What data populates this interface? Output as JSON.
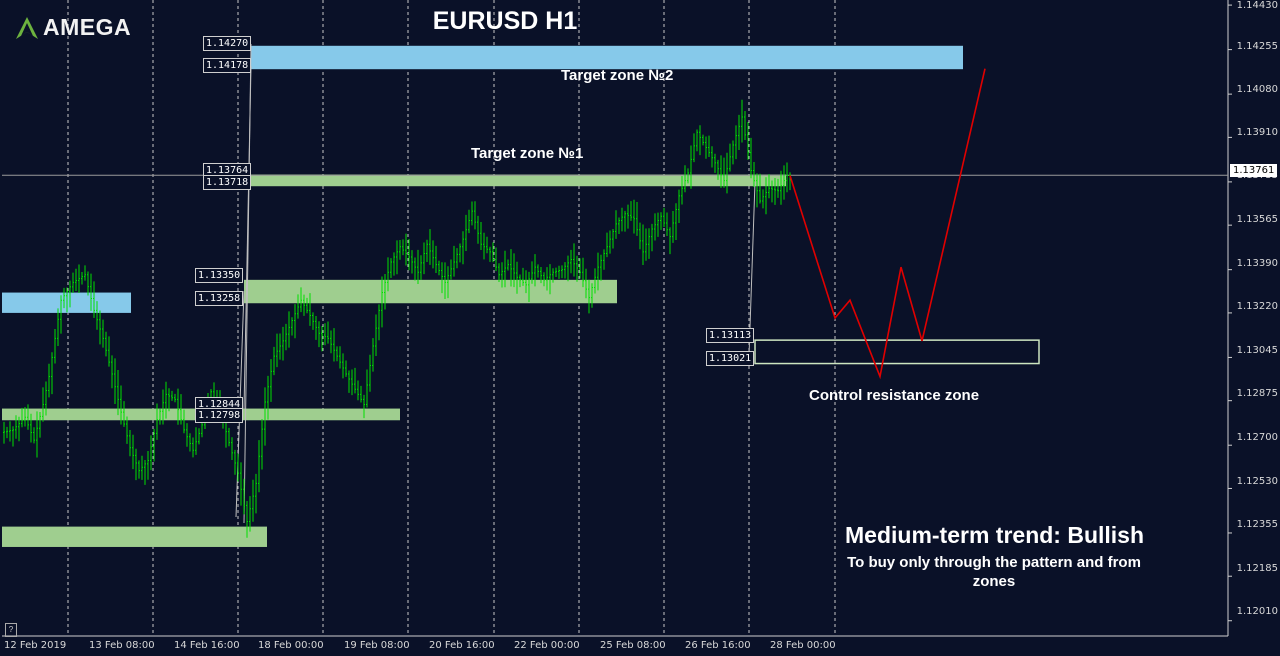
{
  "logo": {
    "text": "AMEGA",
    "icon": "amega-logo-icon"
  },
  "title": "EURUSD H1",
  "labels": {
    "target2": "Target zone №2",
    "target1": "Target zone №1",
    "control": "Control resistance zone",
    "trend": "Medium-term trend: Bullish",
    "advice": "To buy only through the pattern  and from zones"
  },
  "price_labels": [
    "1.14270",
    "1.14178",
    "1.13764",
    "1.13718",
    "1.13350",
    "1.13258",
    "1.12844",
    "1.12798",
    "1.13113",
    "1.13021"
  ],
  "current_price": "1.13761",
  "colors": {
    "background": "#0a1128",
    "candles": "#00e000",
    "forecast": "#e00000",
    "green_zone": "#9fce8f",
    "blue_zone": "#86c9ea"
  },
  "chart_data": {
    "type": "candlestick",
    "symbol": "EURUSD",
    "timeframe": "H1",
    "y_ticks": [
      "1.14430",
      "1.14255",
      "1.14080",
      "1.13910",
      "1.13735",
      "1.13565",
      "1.13390",
      "1.13220",
      "1.13045",
      "1.12875",
      "1.12700",
      "1.12530",
      "1.12355",
      "1.12185",
      "1.12010"
    ],
    "x_ticks": [
      "12 Feb 2019",
      "13 Feb 08:00",
      "14 Feb 16:00",
      "18 Feb 00:00",
      "19 Feb 08:00",
      "20 Feb 16:00",
      "22 Feb 00:00",
      "25 Feb 08:00",
      "26 Feb 16:00",
      "28 Feb 00:00"
    ],
    "ylim": [
      1.1195,
      1.1445
    ],
    "last_price": 1.13761,
    "zones": [
      {
        "name": "Target zone №2",
        "low": 1.14178,
        "high": 1.1427,
        "color": "blue"
      },
      {
        "name": "Target zone №1",
        "low": 1.13718,
        "high": 1.13764,
        "color": "green"
      },
      {
        "low": 1.13258,
        "high": 1.1335,
        "color": "green"
      },
      {
        "low": 1.12798,
        "high": 1.12844,
        "color": "green"
      },
      {
        "low": 1.1322,
        "high": 1.133,
        "color": "blue"
      },
      {
        "low": 1.123,
        "high": 1.1238,
        "color": "green"
      },
      {
        "name": "Control resistance zone",
        "low": 1.13021,
        "high": 1.13113,
        "color": "outline"
      }
    ],
    "price_path": [
      [
        0,
        1.1275
      ],
      [
        4,
        1.1276
      ],
      [
        8,
        1.1281
      ],
      [
        11,
        1.1272
      ],
      [
        14,
        1.1286
      ],
      [
        16,
        1.1297
      ],
      [
        20,
        1.1327
      ],
      [
        24,
        1.1334
      ],
      [
        28,
        1.1337
      ],
      [
        31,
        1.1323
      ],
      [
        34,
        1.1312
      ],
      [
        37,
        1.1298
      ],
      [
        40,
        1.1283
      ],
      [
        43,
        1.1269
      ],
      [
        46,
        1.126
      ],
      [
        49,
        1.1264
      ],
      [
        52,
        1.128
      ],
      [
        55,
        1.129
      ],
      [
        58,
        1.1288
      ],
      [
        61,
        1.1276
      ],
      [
        64,
        1.1268
      ],
      [
        67,
        1.1278
      ],
      [
        70,
        1.1291
      ],
      [
        73,
        1.1284
      ],
      [
        76,
        1.1271
      ],
      [
        79,
        1.1259
      ],
      [
        82,
        1.124
      ],
      [
        85,
        1.1255
      ],
      [
        88,
        1.1287
      ],
      [
        91,
        1.1305
      ],
      [
        94,
        1.1311
      ],
      [
        97,
        1.1319
      ],
      [
        100,
        1.1327
      ],
      [
        103,
        1.1321
      ],
      [
        106,
        1.1314
      ],
      [
        109,
        1.1312
      ],
      [
        112,
        1.1305
      ],
      [
        115,
        1.1298
      ],
      [
        118,
        1.1292
      ],
      [
        121,
        1.1286
      ],
      [
        124,
        1.1309
      ],
      [
        127,
        1.133
      ],
      [
        130,
        1.1342
      ],
      [
        133,
        1.1348
      ],
      [
        136,
        1.1344
      ],
      [
        139,
        1.1338
      ],
      [
        142,
        1.1349
      ],
      [
        145,
        1.1341
      ],
      [
        148,
        1.1334
      ],
      [
        151,
        1.1342
      ],
      [
        154,
        1.1351
      ],
      [
        157,
        1.1362
      ],
      [
        160,
        1.1349
      ],
      [
        163,
        1.1346
      ],
      [
        166,
        1.1337
      ],
      [
        169,
        1.1341
      ],
      [
        172,
        1.1336
      ],
      [
        175,
        1.1333
      ],
      [
        178,
        1.134
      ],
      [
        181,
        1.1335
      ],
      [
        184,
        1.1338
      ],
      [
        187,
        1.1339
      ],
      [
        190,
        1.1343
      ],
      [
        193,
        1.1338
      ],
      [
        196,
        1.1328
      ],
      [
        199,
        1.134
      ],
      [
        202,
        1.1348
      ],
      [
        205,
        1.1357
      ],
      [
        208,
        1.1361
      ],
      [
        211,
        1.1359
      ],
      [
        214,
        1.1346
      ],
      [
        217,
        1.1355
      ],
      [
        220,
        1.136
      ],
      [
        223,
        1.1352
      ],
      [
        226,
        1.1368
      ],
      [
        229,
        1.1377
      ],
      [
        232,
        1.1393
      ],
      [
        235,
        1.1387
      ],
      [
        238,
        1.1381
      ],
      [
        241,
        1.1374
      ],
      [
        244,
        1.1388
      ],
      [
        247,
        1.1399
      ],
      [
        250,
        1.1378
      ],
      [
        253,
        1.1366
      ],
      [
        256,
        1.1371
      ],
      [
        259,
        1.137
      ],
      [
        262,
        1.1376
      ]
    ],
    "forecast_path": [
      [
        262,
        1.1376
      ],
      [
        277,
        1.132
      ],
      [
        282,
        1.1327
      ],
      [
        292,
        1.1297
      ],
      [
        299,
        1.134
      ],
      [
        306,
        1.1311
      ],
      [
        327,
        1.1418
      ]
    ]
  }
}
